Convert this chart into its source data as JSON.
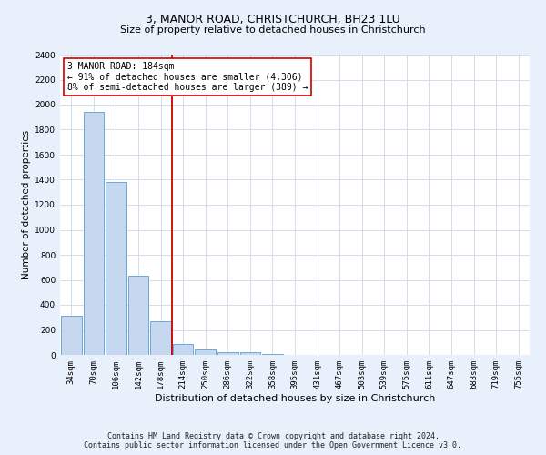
{
  "title": "3, MANOR ROAD, CHRISTCHURCH, BH23 1LU",
  "subtitle": "Size of property relative to detached houses in Christchurch",
  "xlabel": "Distribution of detached houses by size in Christchurch",
  "ylabel": "Number of detached properties",
  "bar_labels": [
    "34sqm",
    "70sqm",
    "106sqm",
    "142sqm",
    "178sqm",
    "214sqm",
    "250sqm",
    "286sqm",
    "322sqm",
    "358sqm",
    "395sqm",
    "431sqm",
    "467sqm",
    "503sqm",
    "539sqm",
    "575sqm",
    "611sqm",
    "647sqm",
    "683sqm",
    "719sqm",
    "755sqm"
  ],
  "bar_values": [
    310,
    1940,
    1380,
    630,
    270,
    90,
    45,
    25,
    20,
    5,
    3,
    2,
    1,
    1,
    0,
    0,
    0,
    0,
    0,
    0,
    0
  ],
  "bar_color": "#c5d8f0",
  "bar_edge_color": "#6aaad4",
  "vline_x": 4.5,
  "vline_color": "#cc0000",
  "annotation_text": "3 MANOR ROAD: 184sqm\n← 91% of detached houses are smaller (4,306)\n8% of semi-detached houses are larger (389) →",
  "annotation_box_color": "#ffffff",
  "annotation_box_edge": "#cc0000",
  "ylim": [
    0,
    2400
  ],
  "yticks": [
    0,
    200,
    400,
    600,
    800,
    1000,
    1200,
    1400,
    1600,
    1800,
    2000,
    2200,
    2400
  ],
  "footnote": "Contains HM Land Registry data © Crown copyright and database right 2024.\nContains public sector information licensed under the Open Government Licence v3.0.",
  "bg_color": "#e8f0fb",
  "plot_bg_color": "#ffffff",
  "grid_color": "#d0d8e8",
  "title_fontsize": 9,
  "subtitle_fontsize": 8,
  "xlabel_fontsize": 8,
  "ylabel_fontsize": 7.5,
  "tick_fontsize": 6.5,
  "annot_fontsize": 7,
  "footnote_fontsize": 6
}
